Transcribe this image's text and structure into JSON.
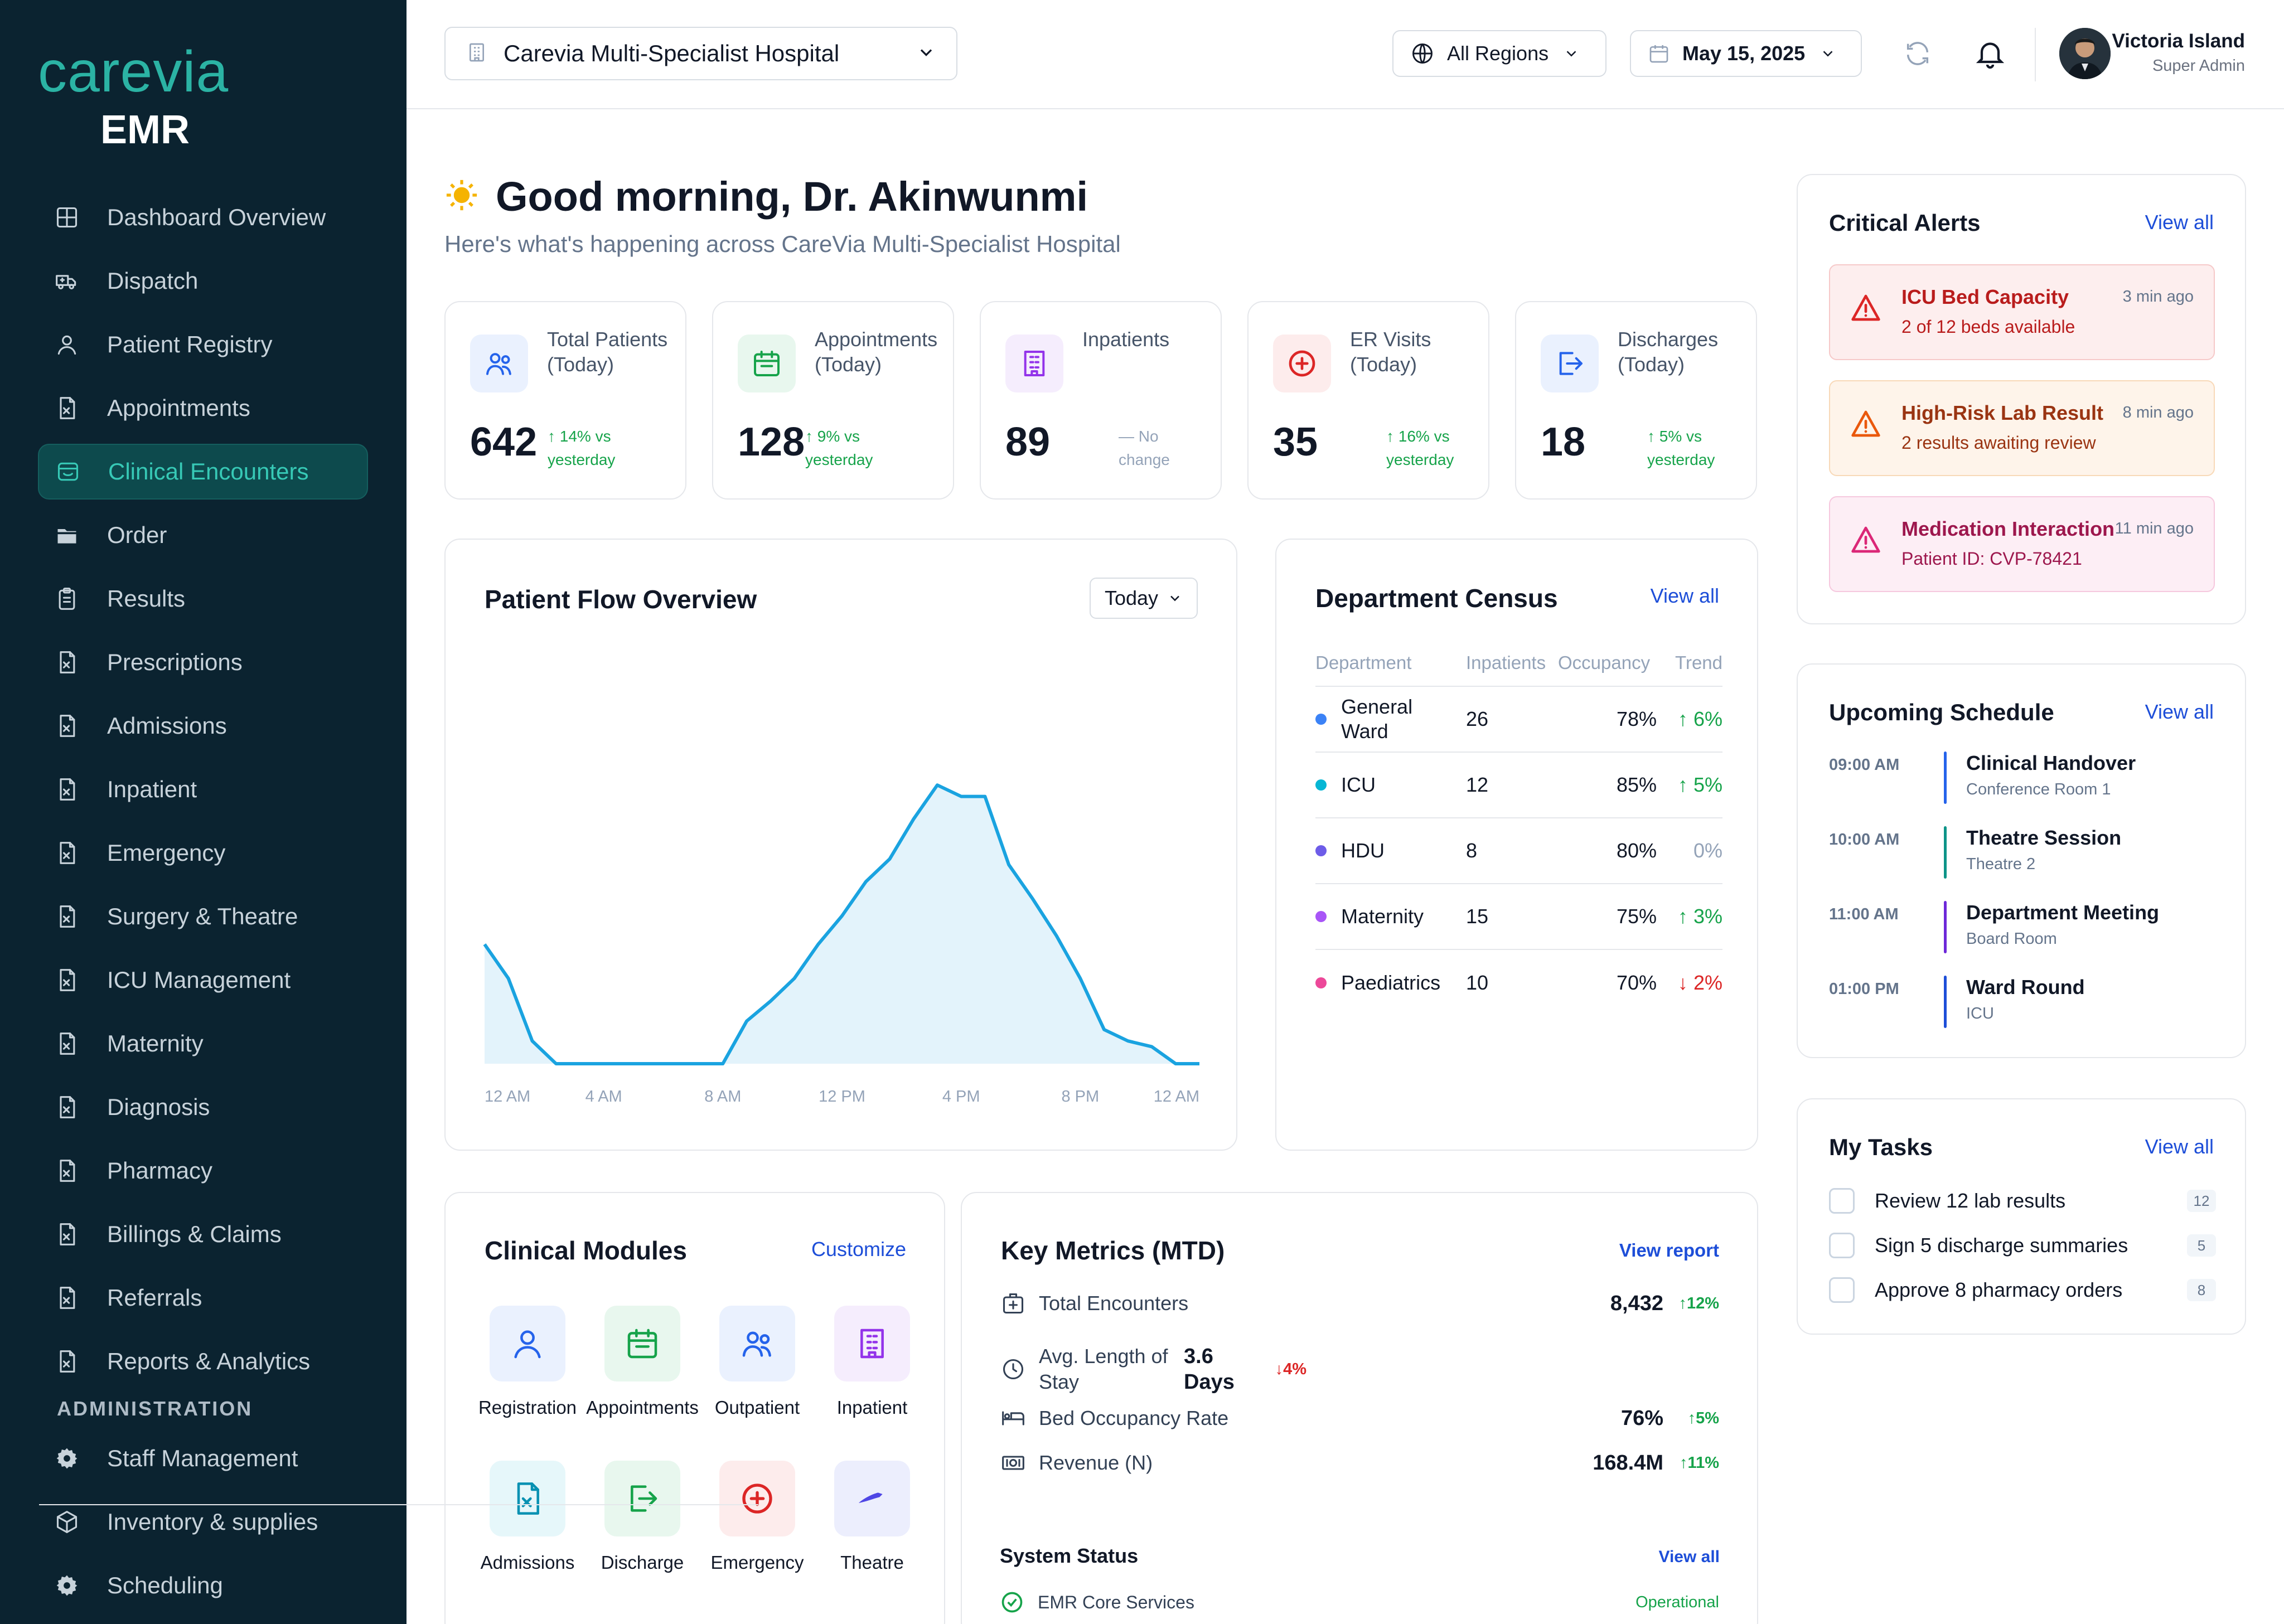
{
  "brand": {
    "logo": "carevia",
    "product": "EMR"
  },
  "sidebar": {
    "items": [
      {
        "label": "Dashboard Overview",
        "icon": "grid-icon",
        "active": false
      },
      {
        "label": "Dispatch",
        "icon": "ambulance-icon",
        "active": false
      },
      {
        "label": "Patient Registry",
        "icon": "user-icon",
        "active": false
      },
      {
        "label": "Appointments",
        "icon": "document-icon",
        "active": false
      },
      {
        "label": "Clinical Encounters",
        "icon": "encounter-icon",
        "active": true
      },
      {
        "label": "Order",
        "icon": "folder-icon",
        "active": false
      },
      {
        "label": "Results",
        "icon": "clipboard-icon",
        "active": false
      },
      {
        "label": "Prescriptions",
        "icon": "document-icon",
        "active": false
      },
      {
        "label": "Admissions",
        "icon": "document-icon",
        "active": false
      },
      {
        "label": "Inpatient",
        "icon": "document-icon",
        "active": false
      },
      {
        "label": "Emergency",
        "icon": "document-icon",
        "active": false
      },
      {
        "label": "Surgery & Theatre",
        "icon": "document-icon",
        "active": false
      },
      {
        "label": "ICU Management",
        "icon": "document-icon",
        "active": false
      },
      {
        "label": "Maternity",
        "icon": "document-icon",
        "active": false
      },
      {
        "label": "Diagnosis",
        "icon": "document-icon",
        "active": false
      },
      {
        "label": "Pharmacy",
        "icon": "document-icon",
        "active": false
      },
      {
        "label": "Billings & Claims",
        "icon": "document-icon",
        "active": false
      },
      {
        "label": "Referrals",
        "icon": "document-icon",
        "active": false
      },
      {
        "label": "Reports & Analytics",
        "icon": "document-icon",
        "active": false
      }
    ],
    "admin_label": "ADMINISTRATION",
    "admin_items": [
      {
        "label": "Staff Management",
        "icon": "gear-icon"
      },
      {
        "label": "Inventory & supplies",
        "icon": "cube-icon"
      },
      {
        "label": "Scheduling",
        "icon": "gear-icon"
      }
    ]
  },
  "topbar": {
    "hospital": "Carevia Multi-Specialist Hospital",
    "region": "All Regions",
    "date": "May 15, 2025",
    "user_name": "Victoria Island",
    "user_role": "Super Admin"
  },
  "greeting": {
    "title": "Good morning, Dr. Akinwunmi",
    "subtitle": "Here's what's happening across CareVia Multi-Specialist Hospital"
  },
  "stats": [
    {
      "label": "Total Patients (Today)",
      "value": "642",
      "change": "↑ 14% vs yesterday",
      "trend": "up",
      "icon": "patients-icon",
      "color": "#2563eb",
      "bg": "#eaf1fe"
    },
    {
      "label": "Appointments (Today)",
      "value": "128",
      "change": "↑ 9% vs yesterday",
      "trend": "up",
      "icon": "calendar-icon",
      "color": "#16a34a",
      "bg": "#e8f7ee"
    },
    {
      "label": "Inpatients",
      "value": "89",
      "change": "— No change",
      "trend": "flat",
      "icon": "building-icon",
      "color": "#9333ea",
      "bg": "#f5edfd"
    },
    {
      "label": "ER Visits (Today)",
      "value": "35",
      "change": "↑ 16% vs yesterday",
      "trend": "up",
      "icon": "emergency-icon",
      "color": "#dc2626",
      "bg": "#fdecec"
    },
    {
      "label": "Discharges (Today)",
      "value": "18",
      "change": "↑ 5% vs yesterday",
      "trend": "up",
      "icon": "exit-icon",
      "color": "#2563eb",
      "bg": "#eaf1fe"
    }
  ],
  "patient_flow": {
    "title": "Patient Flow Overview",
    "period": "Today",
    "x_ticks": [
      "12 AM",
      "4 AM",
      "8 AM",
      "12 PM",
      "4 PM",
      "8 PM",
      "12 AM"
    ]
  },
  "chart_data": {
    "type": "area",
    "title": "Patient Flow Overview",
    "x": [
      "00:00",
      "00:48",
      "01:36",
      "02:24",
      "03:12",
      "04:00",
      "04:48",
      "05:36",
      "06:24",
      "07:12",
      "08:00",
      "08:48",
      "09:36",
      "10:24",
      "11:12",
      "12:00",
      "12:48",
      "13:36",
      "14:24",
      "15:12",
      "16:00",
      "16:48",
      "17:36",
      "18:24",
      "19:12",
      "20:00",
      "20:48",
      "21:36",
      "22:24",
      "23:12",
      "24:00"
    ],
    "values": [
      42,
      30,
      8,
      0,
      0,
      0,
      0,
      0,
      0,
      0,
      0,
      15,
      22,
      30,
      42,
      52,
      64,
      72,
      86,
      98,
      94,
      94,
      70,
      58,
      45,
      30,
      12,
      8,
      6,
      0,
      0
    ],
    "xlabel": "",
    "ylabel": "",
    "x_ticks": [
      "12 AM",
      "4 AM",
      "8 AM",
      "12 PM",
      "4 PM",
      "8 PM",
      "12 AM"
    ],
    "ylim": [
      0,
      100
    ],
    "grid": false,
    "color": "#1aa3e0",
    "fill": "#e3f3fb"
  },
  "census": {
    "title": "Department Census",
    "view_all": "View all",
    "headers": [
      "Department",
      "Inpatients",
      "Occupancy",
      "Trend"
    ],
    "rows": [
      {
        "dept": "General Ward",
        "inpatients": "26",
        "occupancy": "78%",
        "trend": "↑ 6%",
        "dir": "up",
        "color": "#3b82f6"
      },
      {
        "dept": "ICU",
        "inpatients": "12",
        "occupancy": "85%",
        "trend": "↑ 5%",
        "dir": "up",
        "color": "#06b6d4"
      },
      {
        "dept": "HDU",
        "inpatients": "8",
        "occupancy": "80%",
        "trend": "0%",
        "dir": "flat",
        "color": "#6d5ce8"
      },
      {
        "dept": "Maternity",
        "inpatients": "15",
        "occupancy": "75%",
        "trend": "↑ 3%",
        "dir": "up",
        "color": "#a855f7"
      },
      {
        "dept": "Paediatrics",
        "inpatients": "10",
        "occupancy": "70%",
        "trend": "↓ 2%",
        "dir": "down",
        "color": "#ec4899"
      }
    ]
  },
  "modules": {
    "title": "Clinical Modules",
    "customize": "Customize",
    "items": [
      {
        "label": "Registration",
        "icon": "user-icon",
        "color": "#2563eb",
        "bg": "#eaf1fe"
      },
      {
        "label": "Appointments",
        "icon": "calendar-icon",
        "color": "#16a34a",
        "bg": "#e8f7ee"
      },
      {
        "label": "Outpatient",
        "icon": "patients-icon",
        "color": "#2563eb",
        "bg": "#eaf1fe"
      },
      {
        "label": "Inpatient",
        "icon": "building-icon",
        "color": "#9333ea",
        "bg": "#f5edfd"
      },
      {
        "label": "Admissions",
        "icon": "admission-icon",
        "color": "#0891b2",
        "bg": "#e6f7fa"
      },
      {
        "label": "Discharge",
        "icon": "exit-icon",
        "color": "#16a34a",
        "bg": "#e8f7ee"
      },
      {
        "label": "Emergency",
        "icon": "emergency-icon",
        "color": "#dc2626",
        "bg": "#fdecec"
      },
      {
        "label": "Theatre",
        "icon": "scalpel-icon",
        "color": "#4f46e5",
        "bg": "#eceefd"
      }
    ]
  },
  "key_metrics": {
    "title": "Key Metrics (MTD)",
    "view_report": "View report",
    "rows": [
      {
        "label": "Total Encounters",
        "value": "8,432",
        "change": "↑12%",
        "dir": "up",
        "icon": "medical-box-icon"
      },
      {
        "label": "Avg. Length of Stay",
        "value": "3.6 Days",
        "change": "↓4%",
        "dir": "down",
        "icon": "clock-icon"
      },
      {
        "label": "Bed Occupancy Rate",
        "value": "76%",
        "change": "↑5%",
        "dir": "up",
        "icon": "bed-icon"
      },
      {
        "label": "Revenue (N)",
        "value": "168.4M",
        "change": "↑11%",
        "dir": "up",
        "icon": "cash-icon"
      }
    ],
    "system_status_title": "System Status",
    "system_view_all": "View all",
    "system_rows": [
      {
        "label": "EMR Core Services",
        "status": "Operational"
      }
    ]
  },
  "alerts": {
    "title": "Critical Alerts",
    "view_all": "View all",
    "items": [
      {
        "title": "ICU Bed Capacity",
        "sub": "2 of 12 beds available",
        "time": "3 min ago",
        "color": "#dc2626",
        "bg": "#fdeeee",
        "border": "#f6c9c9",
        "title_color": "#b91c1c"
      },
      {
        "title": "High-Risk Lab Result",
        "sub": "2 results awaiting review",
        "time": "8 min ago",
        "color": "#ea580c",
        "bg": "#fef4ea",
        "border": "#f8d9b8",
        "title_color": "#9a3412"
      },
      {
        "title": "Medication Interaction",
        "sub": "Patient ID: CVP-78421",
        "time": "11 min ago",
        "color": "#db2777",
        "bg": "#fdeef5",
        "border": "#f6c8de",
        "title_color": "#9d174d"
      }
    ]
  },
  "schedule": {
    "title": "Upcoming Schedule",
    "view_all": "View all",
    "items": [
      {
        "time": "09:00 AM",
        "title": "Clinical Handover",
        "sub": "Conference Room 1",
        "color": "#2563eb"
      },
      {
        "time": "10:00 AM",
        "title": "Theatre Session",
        "sub": "Theatre 2",
        "color": "#0d9488"
      },
      {
        "time": "11:00 AM",
        "title": "Department Meeting",
        "sub": "Board Room",
        "color": "#6d28d9"
      },
      {
        "time": "01:00 PM",
        "title": "Ward Round",
        "sub": "ICU",
        "color": "#1d4ed8"
      }
    ]
  },
  "tasks": {
    "title": "My Tasks",
    "view_all": "View all",
    "items": [
      {
        "label": "Review 12 lab results",
        "count": "12"
      },
      {
        "label": "Sign 5 discharge summaries",
        "count": "5"
      },
      {
        "label": "Approve 8 pharmacy orders",
        "count": "8"
      }
    ]
  }
}
